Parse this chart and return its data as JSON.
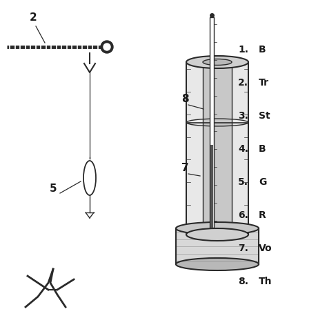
{
  "background_color": "#ffffff",
  "legend_items": [
    {
      "num": "1.",
      "text": "B"
    },
    {
      "num": "2.",
      "text": "Tr"
    },
    {
      "num": "3.",
      "text": "St"
    },
    {
      "num": "4.",
      "text": "B"
    },
    {
      "num": "5.",
      "text": "G"
    },
    {
      "num": "6.",
      "text": "R"
    },
    {
      "num": "7.",
      "text": "Vo"
    },
    {
      "num": "8.",
      "text": "Th"
    }
  ],
  "label_color": "#1a1a1a",
  "line_color": "#2a2a2a",
  "figsize": [
    4.74,
    4.74
  ],
  "dpi": 100
}
